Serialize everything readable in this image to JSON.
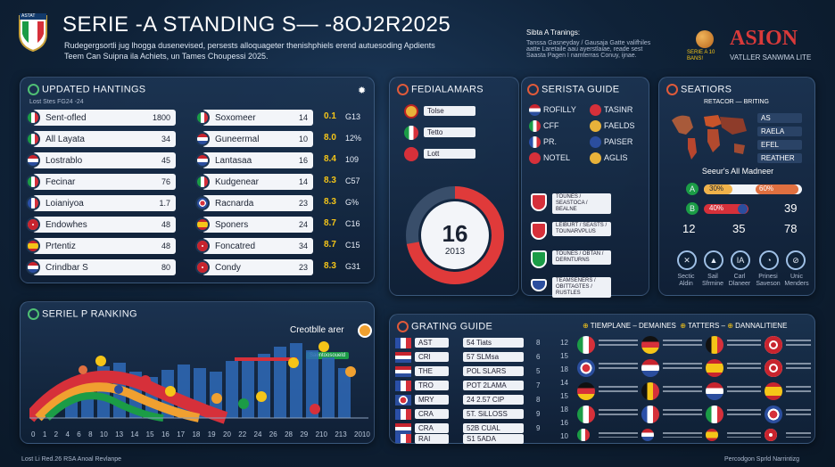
{
  "header": {
    "title": "SERIE -A STANDING S— -8OJ2R2025",
    "subtitle_line1": "Rudegergsortli jug lhogga dusenevised, persests alloquageter thenishphiels erend autuesoding Apdients",
    "subtitle_line2": "Teem Can Suipna ila Achiets, un Tames Choupessi 2025.",
    "logo_text": "ASTAT",
    "info_title": "Sibta A Tranings:",
    "info_lines": [
      "Tanssa Gasneyday / Gausaja Gatte valifhiles",
      "aatte Laretaile aau ayerstlaiae, reade sest",
      "Saasta Pagen I namterras Conuy, ijnae."
    ],
    "ball_caption": "SERIE A 10 BANS!",
    "brand": "ASION",
    "brand_sub": "VATLLER SANWMA LITE"
  },
  "updated_rankings": {
    "title": "UPDATED HANTINGS",
    "caption": "Lost Stes FG24 -24",
    "left_rows": [
      {
        "name": "Sent-ofled",
        "value": "1800"
      },
      {
        "name": "All Layata",
        "value": "34"
      },
      {
        "name": "Lostrablo",
        "value": "45"
      },
      {
        "name": "Fecinar",
        "value": "76"
      },
      {
        "name": "Loianiyoa",
        "value": "1.7"
      },
      {
        "name": "Endowhes",
        "value": "48"
      },
      {
        "name": "Prtentiz",
        "value": "48"
      },
      {
        "name": "Crindbar S",
        "value": "80"
      }
    ],
    "right_rows": [
      {
        "name": "Soxomeer",
        "value": "14",
        "a": "0.1",
        "b": "G13"
      },
      {
        "name": "Guneermal",
        "value": "10",
        "a": "8.0",
        "b": "12%"
      },
      {
        "name": "Lantasaa",
        "value": "16",
        "a": "8.4",
        "b": "109"
      },
      {
        "name": "Kudgenear",
        "value": "14",
        "a": "8.3",
        "b": "C57"
      },
      {
        "name": "Racnarda",
        "value": "23",
        "a": "8.3",
        "b": "G%"
      },
      {
        "name": "Sponers",
        "value": "24",
        "a": "8.7",
        "b": "C16"
      },
      {
        "name": "Foncatred",
        "value": "34",
        "a": "8.7",
        "b": "C15"
      },
      {
        "name": "Condy",
        "value": "23",
        "a": "8.3",
        "b": "G31"
      }
    ]
  },
  "fediala": {
    "title": "FEDIALAMARS",
    "chips": [
      "Tolse",
      "Tetto",
      "Lott"
    ],
    "big_number": "16",
    "year": "2013",
    "ring_fraction": 0.72
  },
  "sersta": {
    "title": "SERISTA GUIDE",
    "items": [
      "ROFILLY",
      "TASINR",
      "CFF",
      "FAELDS",
      "PR.",
      "PAISER",
      "NOTEL",
      "AGLIS"
    ],
    "cards": [
      "TOUNES / SEASTOCA / BEALNE",
      "LEIBURT / SEASTS / TOUNARVPLUS",
      "TOUNES / OBTAN / DERNTURNS",
      "TEAMSENERS / OBITTAGTES / RUSTLES"
    ]
  },
  "stations": {
    "title": "SEATIORS",
    "map_caption": "RETACOR — BRITING",
    "legend": [
      "AS",
      "RAELA",
      "EFEL",
      "REATHER"
    ],
    "subtitle": "Seeur's All Madneer",
    "bar_a_label": "A",
    "bar_a_pct": "30%",
    "bar_a_right": "60%",
    "bar_b_label": "B",
    "bar_b_pct": "40%",
    "bar_b_right": "39",
    "stats": [
      "12",
      "35",
      "78"
    ],
    "icons": [
      {
        "name": "Sectic",
        "sub": "Aldin"
      },
      {
        "name": "Sail",
        "sub": "Sfrmine"
      },
      {
        "name": "Carl",
        "sub": "Dlaneer"
      },
      {
        "name": "Prinesi",
        "sub": "Saveson"
      },
      {
        "name": "Unic",
        "sub": "Menders"
      }
    ]
  },
  "series_ranking": {
    "title": "SERIEL P RANKING",
    "callout": "Creotblle arer",
    "tag": "Saentoosoueld",
    "x_ticks": [
      "0",
      "1",
      "2",
      "4",
      "6",
      "8",
      "10",
      "13",
      "14",
      "15",
      "16",
      "17",
      "18",
      "19",
      "20",
      "22",
      "24",
      "26",
      "28",
      "29",
      "210",
      "213",
      "2010"
    ]
  },
  "grating": {
    "title": "GRATING GUIDE",
    "rows": [
      {
        "code": "AST",
        "value": "54 Tiats",
        "n": "8"
      },
      {
        "code": "CRI",
        "value": "57 SLMsa",
        "n": "6"
      },
      {
        "code": "THE",
        "value": "POL SLARS",
        "n": "5"
      },
      {
        "code": "TRO",
        "value": "POT 2LAMA",
        "n": "7"
      },
      {
        "code": "MRY",
        "value": "24 2.57 CIP",
        "n": "8"
      },
      {
        "code": "CRA",
        "value": "5T. SiLLOSS",
        "n": "9"
      },
      {
        "code": "CRA",
        "value": "52B CUAL",
        "n": "9"
      },
      {
        "code": "RAI",
        "value": "S1 5ADA",
        "n": ""
      }
    ],
    "header_labels": [
      "TIEMPLANE",
      "DEMAINES",
      "TATTERS",
      "DANNALITIENE"
    ],
    "numbers": [
      "12",
      "15",
      "18",
      "14",
      "15",
      "18",
      "16",
      "10"
    ]
  },
  "footer": {
    "left": "Lost Li Red.26 RSA Anoal Revlanpe",
    "right": "Percodgon Sprld Narrintizg"
  }
}
